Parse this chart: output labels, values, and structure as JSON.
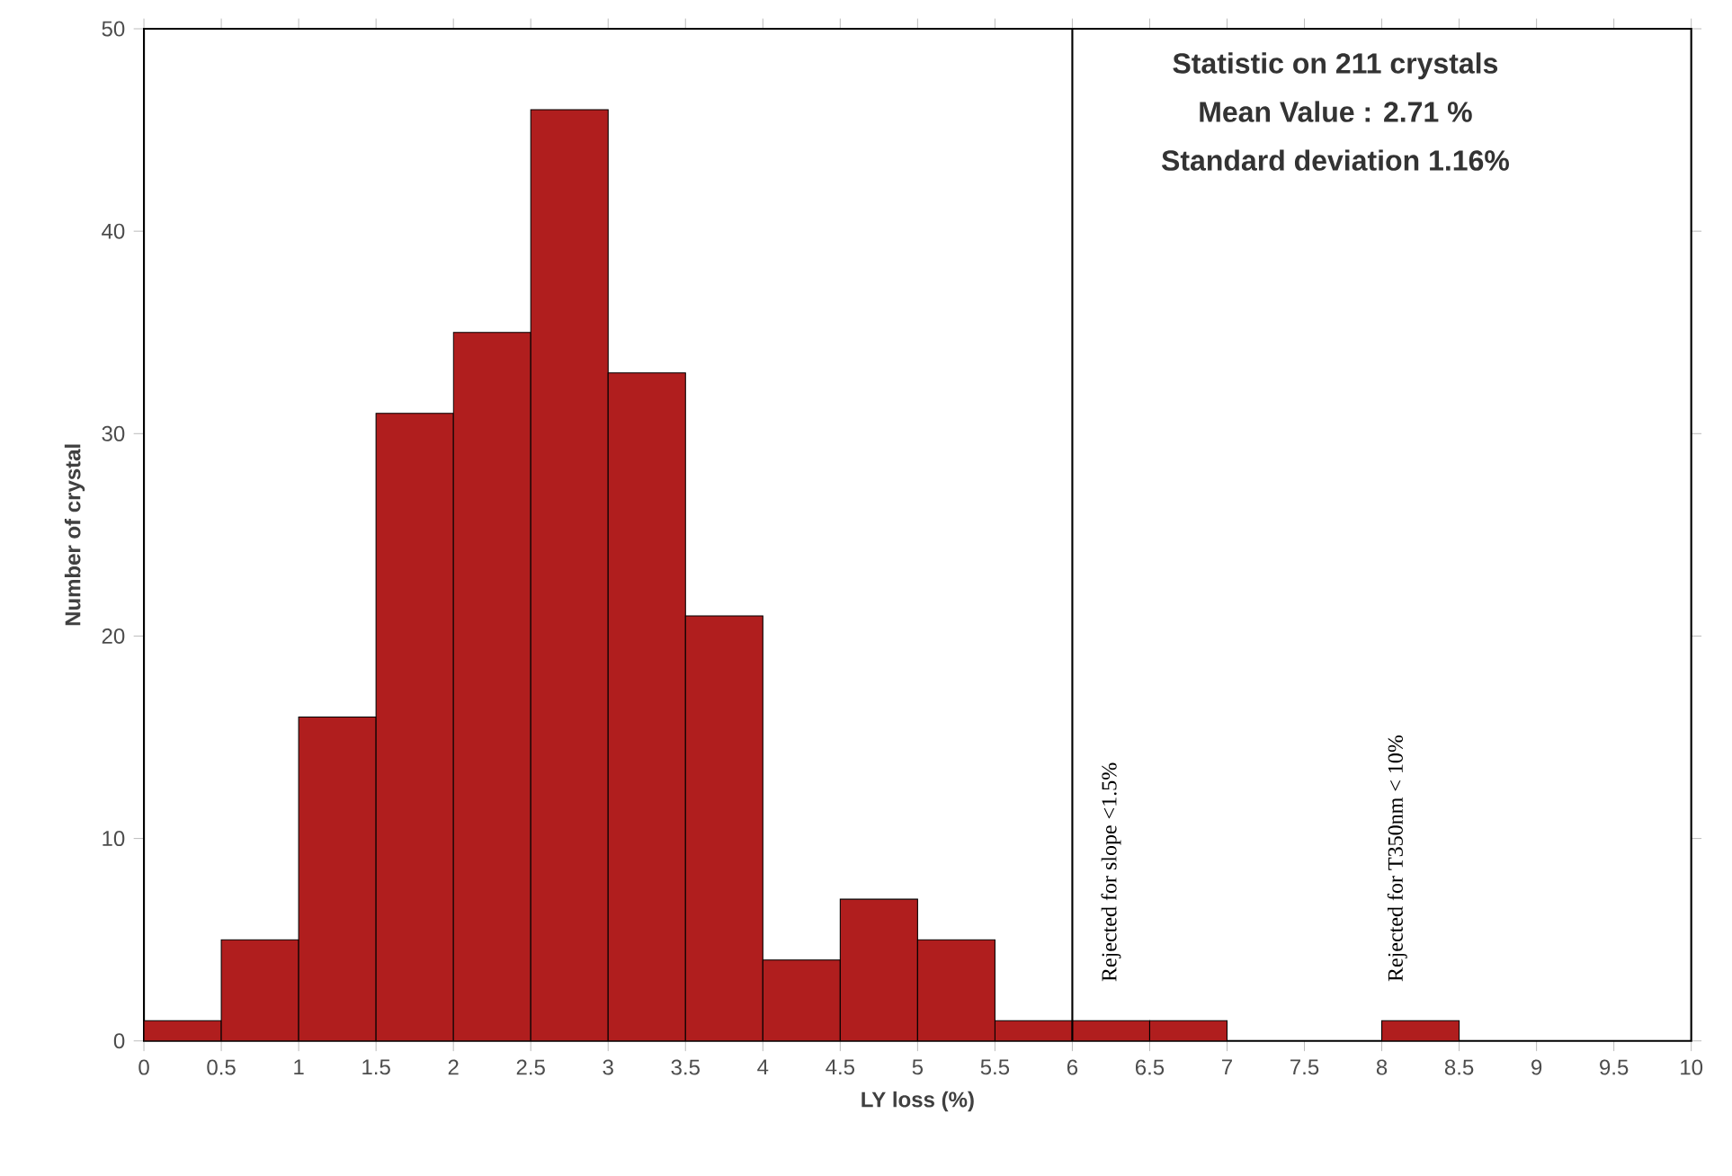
{
  "chart_data": {
    "type": "histogram",
    "xlabel": "LY loss (%)",
    "ylabel": "Number of crystal",
    "bins": [
      0,
      0.5,
      1,
      1.5,
      2,
      2.5,
      3,
      3.5,
      4,
      4.5,
      5,
      5.5,
      6,
      6.5,
      7,
      7.5,
      8,
      8.5,
      9,
      9.5,
      10
    ],
    "values": [
      1,
      5,
      16,
      31,
      35,
      46,
      33,
      21,
      4,
      7,
      5,
      1,
      1,
      1,
      0,
      0,
      1,
      0,
      0,
      0
    ],
    "color": "#b01e1e",
    "xlim": [
      0,
      10
    ],
    "ylim": [
      0,
      50
    ],
    "xticks": [
      0,
      0.5,
      1,
      1.5,
      2,
      2.5,
      3,
      3.5,
      4,
      4.5,
      5,
      5.5,
      6,
      6.5,
      7,
      7.5,
      8,
      8.5,
      9,
      9.5,
      10
    ],
    "yticks": [
      0,
      10,
      20,
      30,
      40,
      50
    ],
    "ref_lines": [
      {
        "axis": "x",
        "value": 6,
        "label": "Rejected for slope <1.5%",
        "color": "#000000"
      }
    ],
    "annotations": [
      "Statistic on 211 crystals",
      "Mean Value : 2.71 %",
      "Standard deviation 1.16%",
      {
        "text": "Rejected for T350nm < 10%",
        "x": 8.25,
        "y": 1
      }
    ]
  }
}
